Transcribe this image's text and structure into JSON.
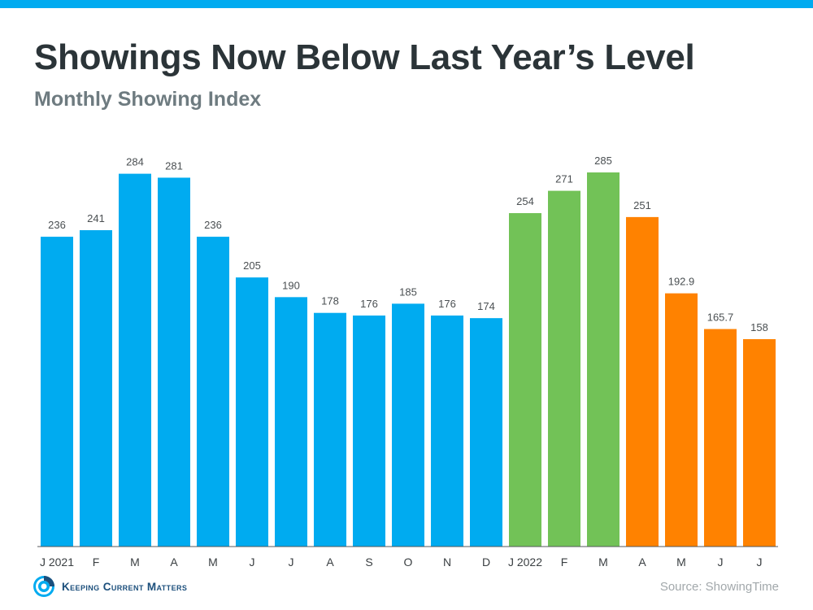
{
  "header": {
    "title": "Showings Now Below Last Year’s Level",
    "subtitle": "Monthly Showing Index"
  },
  "footer": {
    "logo_text": "Keeping Current Matters",
    "logo_icon": "kcm-swirl-icon",
    "source": "Source: ShowingTime"
  },
  "colors": {
    "accent_bar": "#00abf0",
    "blue": "#00abf0",
    "green": "#72c257",
    "orange": "#ff8200"
  },
  "chart_data": {
    "type": "bar",
    "categories": [
      "J 2021",
      "F",
      "M",
      "A",
      "M",
      "J",
      "J",
      "A",
      "S",
      "O",
      "N",
      "D",
      "J 2022",
      "F",
      "M",
      "A",
      "M",
      "J",
      "J"
    ],
    "values": [
      236,
      241,
      284,
      281,
      236,
      205,
      190,
      178,
      176,
      185,
      176,
      174,
      254,
      271,
      285,
      251,
      192.9,
      165.7,
      158
    ],
    "value_labels": [
      "236",
      "241",
      "284",
      "281",
      "236",
      "205",
      "190",
      "178",
      "176",
      "185",
      "176",
      "174",
      "254",
      "271",
      "285",
      "251",
      "192.9",
      "165.7",
      "158"
    ],
    "bar_colors": [
      "#00abf0",
      "#00abf0",
      "#00abf0",
      "#00abf0",
      "#00abf0",
      "#00abf0",
      "#00abf0",
      "#00abf0",
      "#00abf0",
      "#00abf0",
      "#00abf0",
      "#00abf0",
      "#72c257",
      "#72c257",
      "#72c257",
      "#ff8200",
      "#ff8200",
      "#ff8200",
      "#ff8200"
    ],
    "title": "Showings Now Below Last Year’s Level",
    "subtitle": "Monthly Showing Index",
    "xlabel": "",
    "ylabel": "",
    "ylim": [
      0,
      300
    ],
    "grid": false,
    "legend": "none"
  }
}
